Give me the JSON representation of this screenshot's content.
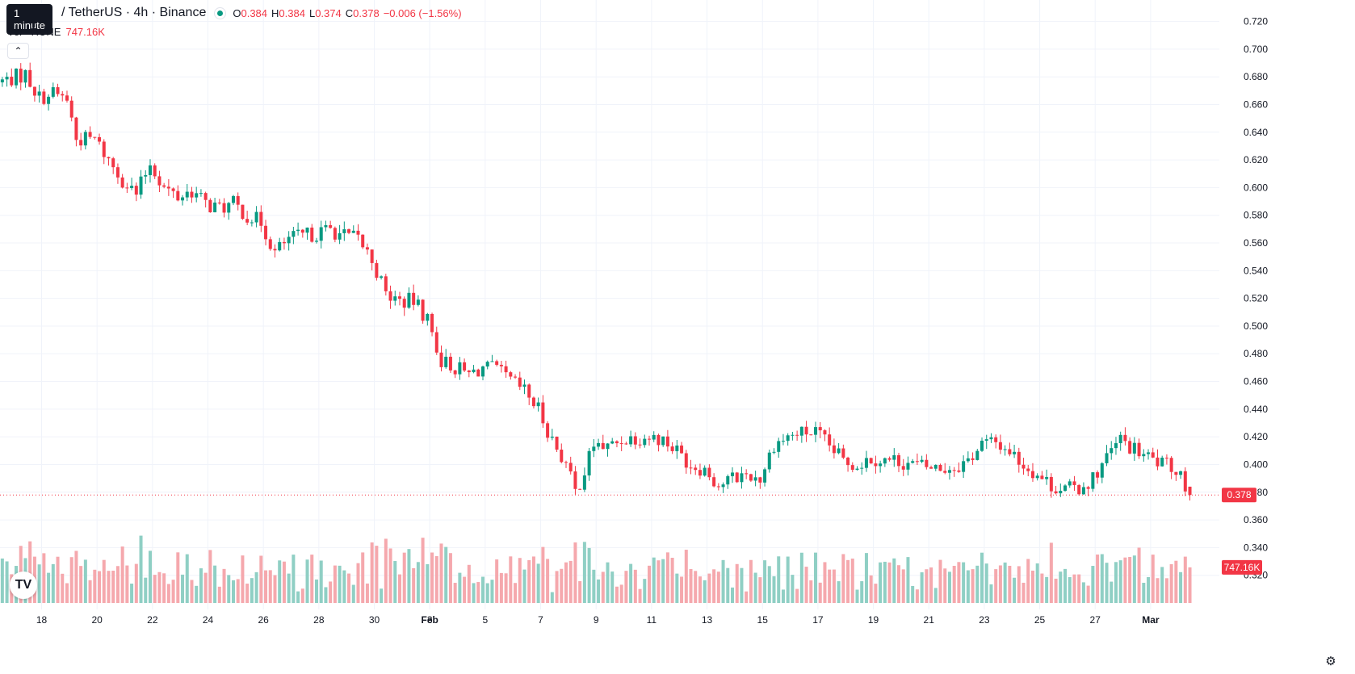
{
  "header": {
    "tooltip": "1 minute",
    "symbol_title": "/ TetherUS · 4h · Binance",
    "ohlc": {
      "o_label": "O",
      "o_value": "0.384",
      "h_label": "H",
      "h_value": "0.384",
      "l_label": "L",
      "l_value": "0.374",
      "c_label": "C",
      "c_value": "0.378",
      "change": "−0.006 (−1.56%)"
    },
    "volume_label": "Vol · RUNE",
    "volume_value": "747.16K",
    "collapse_icon": "chevron-up-icon"
  },
  "price_tag": "0.378",
  "volume_tag": "747.16K",
  "colors": {
    "up": "#089981",
    "down": "#f23645",
    "vol_up": "#8fcfc4",
    "vol_down": "#f5a8ad"
  },
  "chart_data": {
    "type": "candlestick",
    "series_name": "RUNE / TetherUS",
    "interval": "4h",
    "x_range": [
      "2022-01-16T12:00",
      "2022-03-01T08:00"
    ],
    "ylim": [
      0.3,
      0.725
    ],
    "y_ticks": [
      "0.720",
      "0.700",
      "0.680",
      "0.660",
      "0.640",
      "0.620",
      "0.600",
      "0.580",
      "0.560",
      "0.540",
      "0.520",
      "0.500",
      "0.480",
      "0.460",
      "0.440",
      "0.420",
      "0.400",
      "0.380",
      "0.360",
      "0.340",
      "0.320"
    ],
    "x_tick_labels": [
      "18",
      "20",
      "22",
      "24",
      "26",
      "28",
      "30",
      "Feb",
      "3",
      "5",
      "7",
      "9",
      "11",
      "13",
      "15",
      "17",
      "19",
      "21",
      "23",
      "25",
      "27",
      "Mar"
    ],
    "anchors": [
      [
        "2022-01-16T12:00",
        0.676
      ],
      [
        "2022-01-17T00:00",
        0.679
      ],
      [
        "2022-01-17T12:00",
        0.682
      ],
      [
        "2022-01-18T00:00",
        0.665
      ],
      [
        "2022-01-18T12:00",
        0.668
      ],
      [
        "2022-01-19T00:00",
        0.664
      ],
      [
        "2022-01-19T08:00",
        0.635
      ],
      [
        "2022-01-20T00:00",
        0.635
      ],
      [
        "2022-01-20T12:00",
        0.62
      ],
      [
        "2022-01-21T00:00",
        0.606
      ],
      [
        "2022-01-21T12:00",
        0.595
      ],
      [
        "2022-01-22T00:00",
        0.618
      ],
      [
        "2022-01-22T12:00",
        0.6
      ],
      [
        "2022-01-23T00:00",
        0.593
      ],
      [
        "2022-01-23T12:00",
        0.598
      ],
      [
        "2022-01-24T00:00",
        0.588
      ],
      [
        "2022-01-24T12:00",
        0.585
      ],
      [
        "2022-01-25T00:00",
        0.588
      ],
      [
        "2022-01-25T12:00",
        0.58
      ],
      [
        "2022-01-26T00:00",
        0.575
      ],
      [
        "2022-01-26T12:00",
        0.553
      ],
      [
        "2022-01-27T00:00",
        0.563
      ],
      [
        "2022-01-27T12:00",
        0.565
      ],
      [
        "2022-01-28T00:00",
        0.567
      ],
      [
        "2022-01-28T12:00",
        0.57
      ],
      [
        "2022-01-29T00:00",
        0.565
      ],
      [
        "2022-01-29T12:00",
        0.563
      ],
      [
        "2022-01-30T00:00",
        0.548
      ],
      [
        "2022-01-30T12:00",
        0.523
      ],
      [
        "2022-01-31T00:00",
        0.518
      ],
      [
        "2022-01-31T12:00",
        0.518
      ],
      [
        "2022-02-01T00:00",
        0.505
      ],
      [
        "2022-02-01T12:00",
        0.475
      ],
      [
        "2022-02-02T00:00",
        0.47
      ],
      [
        "2022-02-02T12:00",
        0.465
      ],
      [
        "2022-02-03T00:00",
        0.47
      ],
      [
        "2022-02-03T12:00",
        0.468
      ],
      [
        "2022-02-04T00:00",
        0.46
      ],
      [
        "2022-02-04T12:00",
        0.453
      ],
      [
        "2022-02-05T00:00",
        0.44
      ],
      [
        "2022-02-05T12:00",
        0.418
      ],
      [
        "2022-02-06T00:00",
        0.4
      ],
      [
        "2022-02-06T08:00",
        0.38
      ],
      [
        "2022-02-06T16:00",
        0.395
      ],
      [
        "2022-02-07T00:00",
        0.415
      ],
      [
        "2022-02-07T12:00",
        0.412
      ],
      [
        "2022-02-08T00:00",
        0.418
      ],
      [
        "2022-02-08T12:00",
        0.42
      ],
      [
        "2022-02-09T00:00",
        0.42
      ],
      [
        "2022-02-09T12:00",
        0.418
      ],
      [
        "2022-02-10T00:00",
        0.41
      ],
      [
        "2022-02-10T12:00",
        0.4
      ],
      [
        "2022-02-11T00:00",
        0.397
      ],
      [
        "2022-02-11T12:00",
        0.385
      ],
      [
        "2022-02-12T00:00",
        0.39
      ],
      [
        "2022-02-12T12:00",
        0.393
      ],
      [
        "2022-02-13T00:00",
        0.39
      ],
      [
        "2022-02-13T12:00",
        0.415
      ],
      [
        "2022-02-14T00:00",
        0.42
      ],
      [
        "2022-02-14T12:00",
        0.423
      ],
      [
        "2022-02-15T00:00",
        0.423
      ],
      [
        "2022-02-15T12:00",
        0.413
      ],
      [
        "2022-02-16T00:00",
        0.403
      ],
      [
        "2022-02-16T12:00",
        0.4
      ],
      [
        "2022-02-17T00:00",
        0.405
      ],
      [
        "2022-02-17T12:00",
        0.403
      ],
      [
        "2022-02-18T00:00",
        0.403
      ],
      [
        "2022-02-18T12:00",
        0.4
      ],
      [
        "2022-02-19T00:00",
        0.398
      ],
      [
        "2022-02-19T12:00",
        0.397
      ],
      [
        "2022-02-20T00:00",
        0.398
      ],
      [
        "2022-02-20T12:00",
        0.403
      ],
      [
        "2022-02-21T00:00",
        0.415
      ],
      [
        "2022-02-21T12:00",
        0.416
      ],
      [
        "2022-02-22T00:00",
        0.41
      ],
      [
        "2022-02-22T12:00",
        0.4
      ],
      [
        "2022-02-23T00:00",
        0.393
      ],
      [
        "2022-02-23T12:00",
        0.385
      ],
      [
        "2022-02-24T00:00",
        0.382
      ],
      [
        "2022-02-24T12:00",
        0.383
      ],
      [
        "2022-02-25T00:00",
        0.39
      ],
      [
        "2022-02-25T12:00",
        0.405
      ],
      [
        "2022-02-26T00:00",
        0.418
      ],
      [
        "2022-02-26T12:00",
        0.41
      ],
      [
        "2022-02-27T00:00",
        0.405
      ],
      [
        "2022-02-27T12:00",
        0.4
      ],
      [
        "2022-02-28T00:00",
        0.397
      ],
      [
        "2022-02-28T04:00",
        0.395
      ],
      [
        "2022-02-28T08:00",
        0.384
      ],
      [
        "2022-02-28T12:00",
        0.378
      ]
    ],
    "last_bar": {
      "open": 0.384,
      "high": 0.384,
      "low": 0.374,
      "close": 0.378,
      "volume": 747160
    },
    "volume_max": 2200000
  }
}
